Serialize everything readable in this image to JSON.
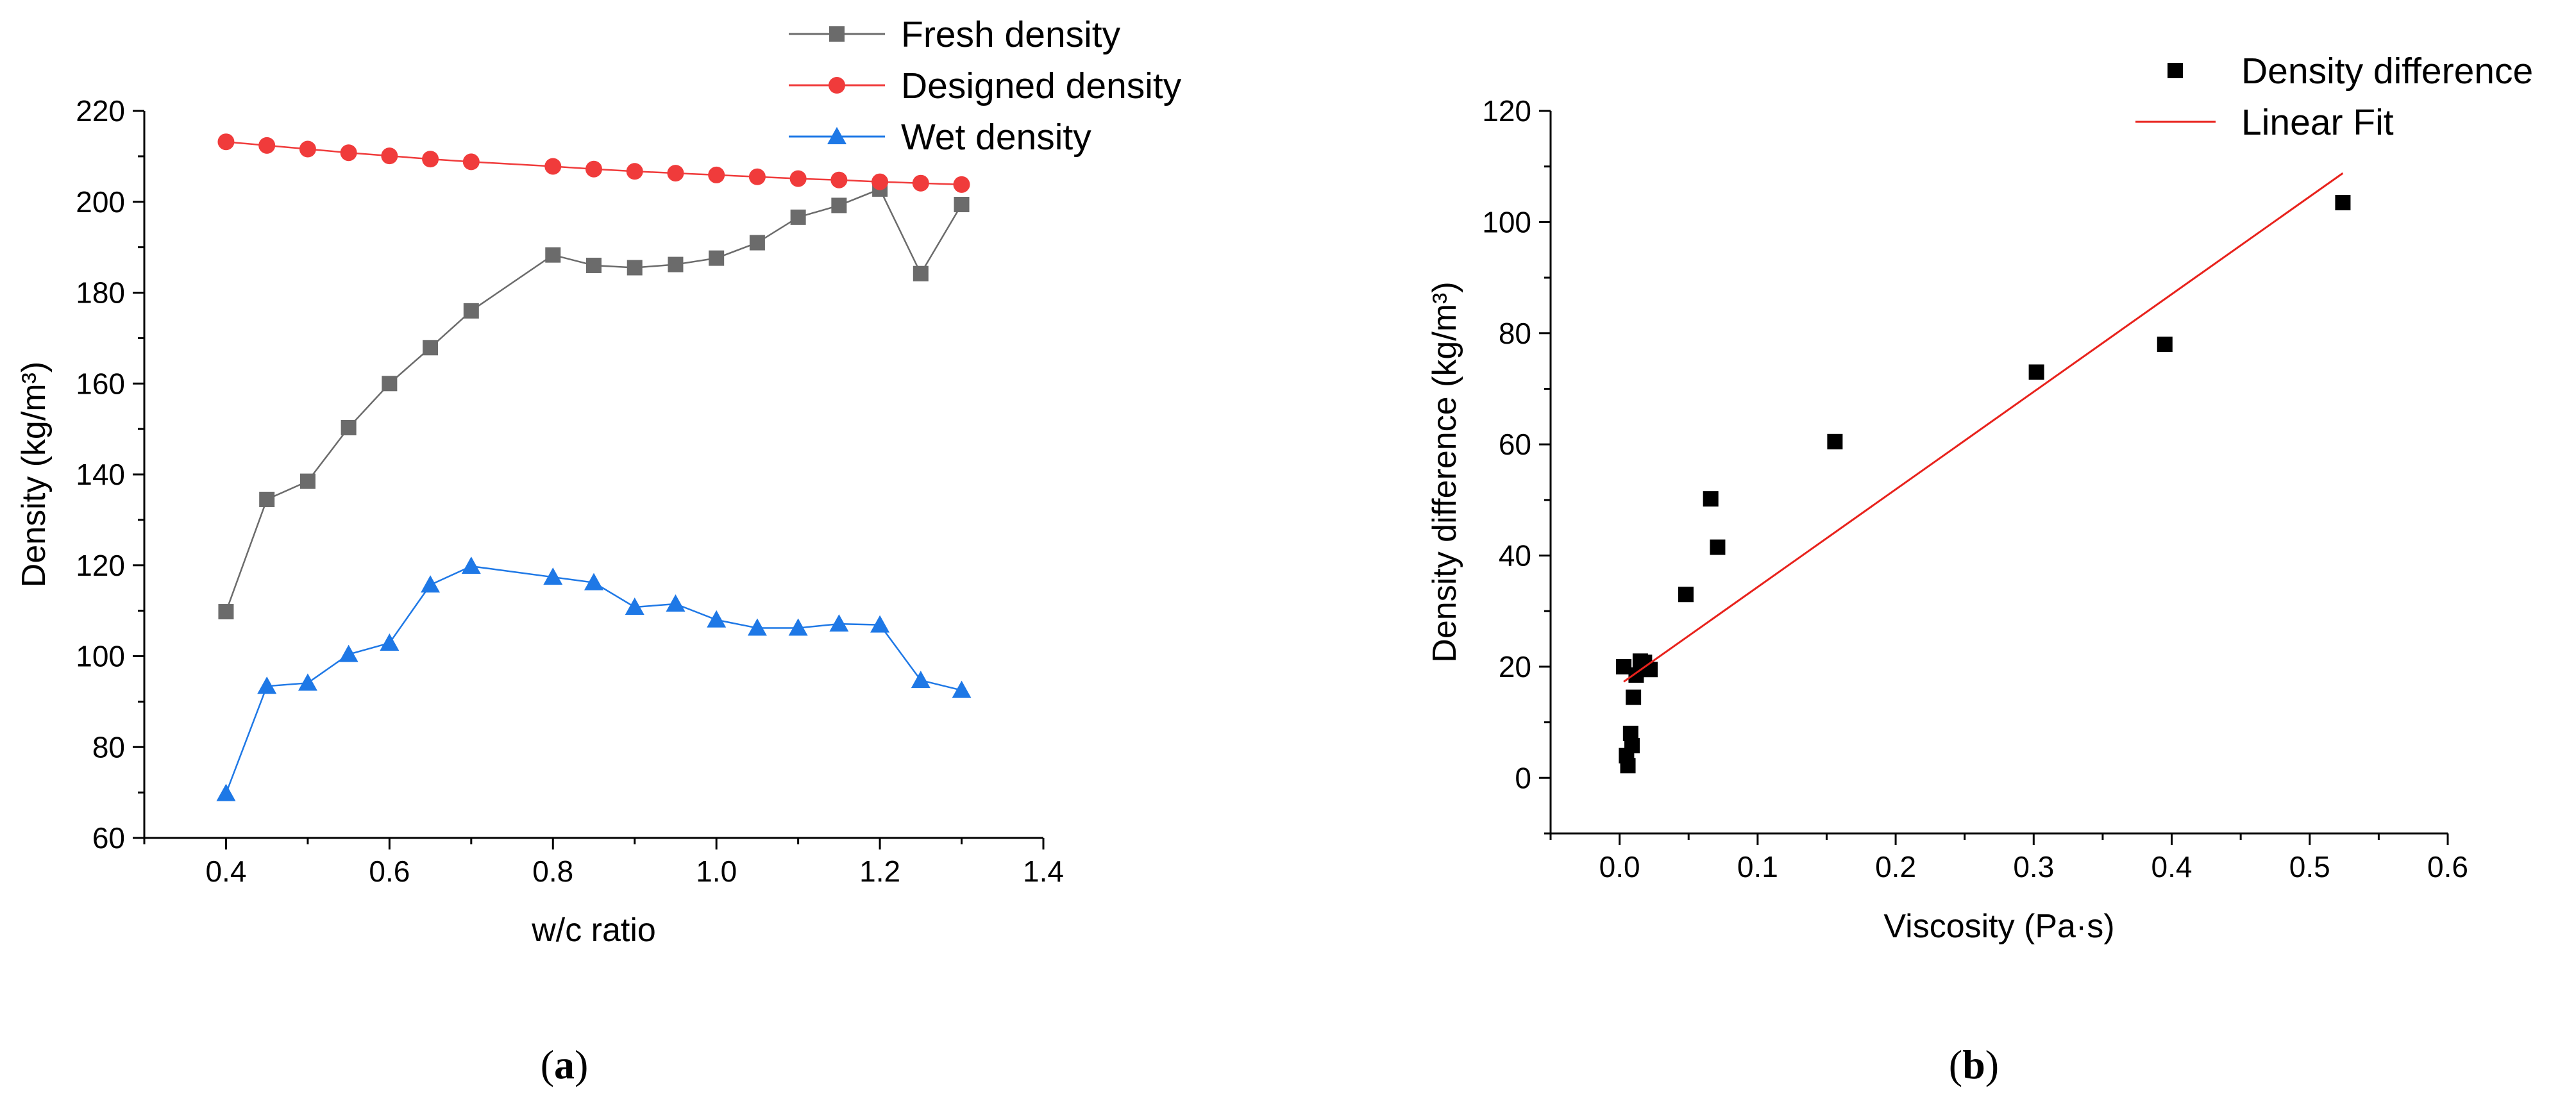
{
  "chart_data": [
    {
      "type": "line",
      "panel": "a",
      "caption": {
        "open": "(",
        "letter": "a",
        "close": ")"
      },
      "xlabel": "w/c ratio",
      "ylabel": "Density (kg/m³)",
      "xlim": [
        0.3,
        1.4
      ],
      "ylim": [
        60,
        220
      ],
      "xticks": [
        "0.4",
        "0.6",
        "0.8",
        "1.0",
        "1.2",
        "1.4"
      ],
      "yticks": [
        "60",
        "80",
        "100",
        "120",
        "140",
        "160",
        "180",
        "200",
        "220"
      ],
      "legend_position": "top-center",
      "series": [
        {
          "name": "Fresh density",
          "color": "#6b6b6b",
          "marker": "square",
          "x": [
            0.4,
            0.45,
            0.5,
            0.55,
            0.6,
            0.65,
            0.7,
            0.8,
            0.85,
            0.9,
            0.95,
            1.0,
            1.05,
            1.1,
            1.15,
            1.2,
            1.25,
            1.3
          ],
          "y": [
            109.8,
            134.5,
            138.5,
            150.3,
            160.0,
            167.9,
            176.0,
            188.3,
            186.0,
            185.5,
            186.2,
            187.6,
            191.0,
            196.6,
            199.2,
            202.8,
            184.2,
            199.4
          ]
        },
        {
          "name": "Designed density",
          "color": "#f03b3b",
          "marker": "circle",
          "x": [
            0.4,
            0.45,
            0.5,
            0.55,
            0.6,
            0.65,
            0.7,
            0.8,
            0.85,
            0.9,
            0.95,
            1.0,
            1.05,
            1.1,
            1.15,
            1.2,
            1.25,
            1.3
          ],
          "y": [
            213.2,
            212.4,
            211.6,
            210.8,
            210.1,
            209.4,
            208.8,
            207.8,
            207.2,
            206.7,
            206.3,
            205.9,
            205.5,
            205.1,
            204.8,
            204.4,
            204.1,
            203.8
          ]
        },
        {
          "name": "Wet density",
          "color": "#1e78e6",
          "marker": "triangle",
          "x": [
            0.4,
            0.45,
            0.5,
            0.55,
            0.6,
            0.65,
            0.7,
            0.8,
            0.85,
            0.9,
            0.95,
            1.0,
            1.05,
            1.1,
            1.15,
            1.2,
            1.25,
            1.3
          ],
          "y": [
            69.8,
            93.4,
            94.1,
            100.4,
            102.9,
            115.7,
            119.8,
            117.4,
            116.2,
            110.8,
            111.5,
            108.0,
            106.2,
            106.2,
            107.1,
            106.9,
            94.7,
            92.5
          ]
        }
      ]
    },
    {
      "type": "scatter",
      "panel": "b",
      "caption": {
        "open": "(",
        "letter": "b",
        "close": ")"
      },
      "xlabel": "Viscosity (Pa·s)",
      "ylabel": "Density difference (kg/m³)",
      "xlim": [
        -0.05,
        0.6
      ],
      "ylim": [
        -10,
        120
      ],
      "xticks": [
        "0.0",
        "0.1",
        "0.2",
        "0.3",
        "0.4",
        "0.5",
        "0.6"
      ],
      "yticks": [
        "0",
        "20",
        "40",
        "60",
        "80",
        "100",
        "120"
      ],
      "legend_position": "top-right",
      "series": [
        {
          "name": "Density difference",
          "color": "#000000",
          "marker": "square",
          "x": [
            0.003,
            0.005,
            0.006,
            0.008,
            0.009,
            0.01,
            0.012,
            0.015,
            0.018,
            0.022,
            0.048,
            0.066,
            0.071,
            0.156,
            0.302,
            0.395,
            0.524
          ],
          "y": [
            20.0,
            4.0,
            2.2,
            8.0,
            5.8,
            14.5,
            18.5,
            21.0,
            20.8,
            19.5,
            33.0,
            50.2,
            41.5,
            60.5,
            73.0,
            78.0,
            103.5
          ]
        },
        {
          "name": "Linear Fit",
          "color": "#e8221c",
          "marker": "line",
          "x": [
            0.003,
            0.524
          ],
          "y": [
            17.3,
            108.8
          ]
        }
      ]
    }
  ]
}
